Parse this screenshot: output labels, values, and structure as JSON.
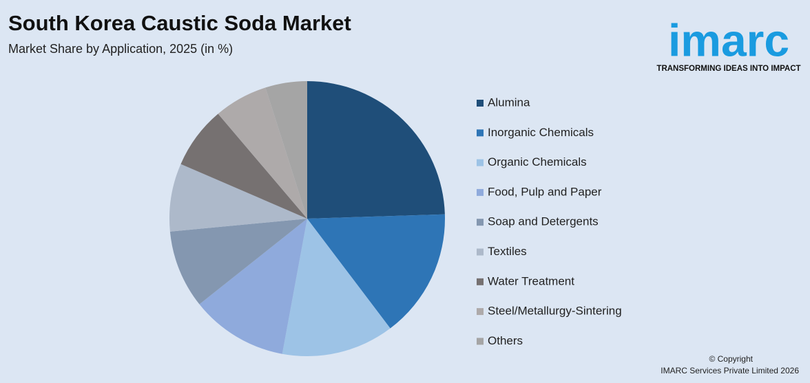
{
  "chart_data": {
    "type": "pie",
    "title": "South Korea Caustic Soda Market",
    "subtitle": "Market Share by Application, 2025 (in %)",
    "categories": [
      "Alumina",
      "Inorganic Chemicals",
      "Organic Chemicals",
      "Food, Pulp and Paper",
      "Soap and Detergents",
      "Textiles",
      "Water Treatment",
      "Steel/Metallurgy-Sintering",
      "Others"
    ],
    "values": [
      24.5,
      15.2,
      13.2,
      11.4,
      9.2,
      8.0,
      7.3,
      6.3,
      4.9
    ],
    "colors": [
      "#1f4e79",
      "#2e75b6",
      "#9dc3e6",
      "#8faadc",
      "#8497b0",
      "#adb9ca",
      "#767171",
      "#aeaaaa",
      "#a5a5a5"
    ],
    "legend": "right"
  },
  "logo": {
    "name": "imarc",
    "tagline": "TRANSFORMING IDEAS INTO IMPACT"
  },
  "footer": {
    "copyright": "© Copyright",
    "company": "IMARC Services Private Limited 2026"
  }
}
